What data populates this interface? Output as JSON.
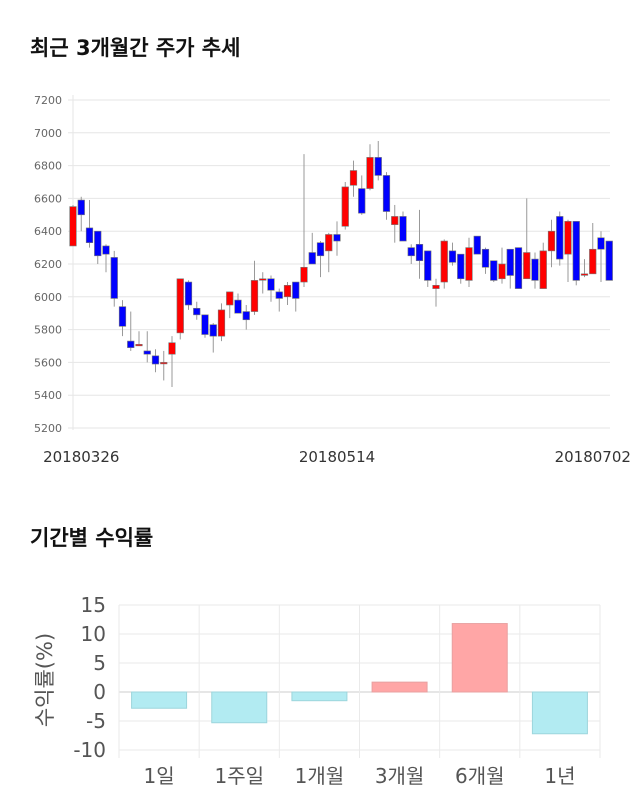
{
  "titles": {
    "price_trend": "최근 3개월간 주가 추세",
    "period_returns": "기간별 수익률"
  },
  "chart_data": [
    {
      "type": "candlestick",
      "ylim": [
        5200,
        7200
      ],
      "y_ticks": [
        5200,
        5400,
        5600,
        5800,
        6000,
        6200,
        6400,
        6600,
        6800,
        7000,
        7200
      ],
      "x_tick_labels": [
        {
          "index": 1,
          "label": "20180326"
        },
        {
          "index": 32,
          "label": "20180514"
        },
        {
          "index": 63,
          "label": "20180702"
        }
      ],
      "grid": true,
      "colors": {
        "up": "#ff0000",
        "down": "#0000ff",
        "wick": "#999999"
      },
      "ohlc": [
        [
          6310,
          6560,
          6310,
          6550
        ],
        [
          6590,
          6610,
          6400,
          6500
        ],
        [
          6420,
          6590,
          6300,
          6330
        ],
        [
          6400,
          6400,
          6200,
          6250
        ],
        [
          6310,
          6320,
          6150,
          6260
        ],
        [
          6240,
          6280,
          5940,
          5990
        ],
        [
          5940,
          5980,
          5760,
          5820
        ],
        [
          5730,
          5910,
          5670,
          5690
        ],
        [
          5710,
          5790,
          5700,
          5710
        ],
        [
          5670,
          5790,
          5600,
          5650
        ],
        [
          5640,
          5680,
          5540,
          5590
        ],
        [
          5600,
          5670,
          5490,
          5600
        ],
        [
          5650,
          5760,
          5450,
          5720
        ],
        [
          5780,
          6110,
          5740,
          6110
        ],
        [
          6090,
          6100,
          5920,
          5950
        ],
        [
          5930,
          5970,
          5860,
          5890
        ],
        [
          5890,
          5890,
          5750,
          5770
        ],
        [
          5830,
          5840,
          5660,
          5760
        ],
        [
          5760,
          5960,
          5730,
          5920
        ],
        [
          5950,
          6030,
          5870,
          6030
        ],
        [
          5980,
          6020,
          5900,
          5900
        ],
        [
          5910,
          5950,
          5800,
          5860
        ],
        [
          5910,
          6220,
          5890,
          6100
        ],
        [
          6110,
          6150,
          6020,
          6110
        ],
        [
          6110,
          6130,
          5970,
          6040
        ],
        [
          6030,
          6050,
          5910,
          5990
        ],
        [
          6000,
          6090,
          5950,
          6070
        ],
        [
          6090,
          6090,
          5910,
          5990
        ],
        [
          6090,
          6870,
          6060,
          6180
        ],
        [
          6270,
          6390,
          6200,
          6200
        ],
        [
          6330,
          6340,
          6120,
          6250
        ],
        [
          6280,
          6390,
          6150,
          6380
        ],
        [
          6380,
          6460,
          6250,
          6340
        ],
        [
          6430,
          6700,
          6410,
          6670
        ],
        [
          6680,
          6830,
          6610,
          6770
        ],
        [
          6660,
          6740,
          6500,
          6510
        ],
        [
          6660,
          6930,
          6650,
          6850
        ],
        [
          6850,
          6950,
          6710,
          6740
        ],
        [
          6740,
          6760,
          6470,
          6520
        ],
        [
          6440,
          6560,
          6330,
          6490
        ],
        [
          6490,
          6520,
          6340,
          6340
        ],
        [
          6300,
          6320,
          6200,
          6250
        ],
        [
          6320,
          6530,
          6110,
          6220
        ],
        [
          6280,
          6280,
          6060,
          6100
        ],
        [
          6050,
          6110,
          5940,
          6070
        ],
        [
          6090,
          6350,
          6050,
          6340
        ],
        [
          6280,
          6330,
          6190,
          6210
        ],
        [
          6260,
          6260,
          6080,
          6110
        ],
        [
          6100,
          6360,
          6060,
          6300
        ],
        [
          6370,
          6370,
          6260,
          6260
        ],
        [
          6290,
          6300,
          6140,
          6180
        ],
        [
          6220,
          6220,
          6090,
          6100
        ],
        [
          6110,
          6300,
          6080,
          6200
        ],
        [
          6290,
          6290,
          6050,
          6130
        ],
        [
          6300,
          6300,
          6050,
          6050
        ],
        [
          6110,
          6600,
          6110,
          6270
        ],
        [
          6230,
          6270,
          6050,
          6100
        ],
        [
          6050,
          6330,
          6050,
          6280
        ],
        [
          6280,
          6470,
          6180,
          6400
        ],
        [
          6490,
          6520,
          6190,
          6230
        ],
        [
          6260,
          6470,
          6090,
          6460
        ],
        [
          6460,
          6460,
          6070,
          6100
        ],
        [
          6140,
          6230,
          6120,
          6140
        ],
        [
          6140,
          6450,
          6140,
          6290
        ],
        [
          6360,
          6400,
          6090,
          6290
        ],
        [
          6340,
          6340,
          6100,
          6100
        ]
      ]
    },
    {
      "type": "bar",
      "categories": [
        "1일",
        "1주일",
        "1개월",
        "3개월",
        "6개월",
        "1년"
      ],
      "values": [
        -2.8,
        -5.3,
        -1.5,
        1.7,
        11.8,
        -7.2
      ],
      "ylabel": "수익률(%)",
      "ylim": [
        -10,
        15
      ],
      "y_ticks": [
        15,
        10,
        5,
        0,
        -5,
        -10
      ],
      "grid": true,
      "colors": {
        "positive": "#ffa6a6",
        "negative": "#b2ebf2"
      }
    }
  ]
}
